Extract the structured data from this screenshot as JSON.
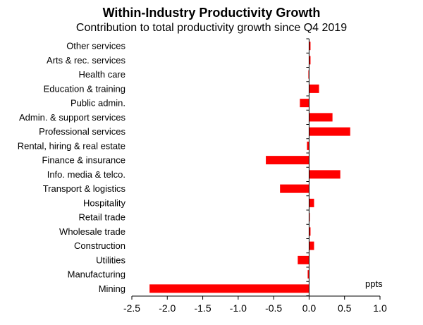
{
  "chart_data": {
    "type": "bar",
    "orientation": "horizontal",
    "title": "Within-Industry Productivity Growth",
    "subtitle": "Contribution to total productivity growth since Q4 2019",
    "unit": "ppts",
    "categories": [
      "Other services",
      "Arts & rec. services",
      "Health care",
      "Education & training",
      "Public admin.",
      "Admin. & support services",
      "Professional services",
      "Rental, hiring & real estate",
      "Finance & insurance",
      "Info. media & telco.",
      "Transport & logistics",
      "Hospitality",
      "Retail trade",
      "Wholesale trade",
      "Construction",
      "Utilities",
      "Manufacturing",
      "Mining"
    ],
    "values": [
      0.02,
      0.02,
      -0.01,
      0.14,
      -0.13,
      0.33,
      0.58,
      -0.03,
      -0.61,
      0.44,
      -0.41,
      0.07,
      0.01,
      0.02,
      0.07,
      -0.16,
      -0.02,
      -2.25
    ],
    "xlim": [
      -2.5,
      1.0
    ],
    "xticks": [
      "-2.5",
      "-2.0",
      "-1.5",
      "-1.0",
      "-0.5",
      "0.0",
      "0.5",
      "1.0"
    ],
    "bar_color": "#ff0000",
    "grid": false
  }
}
